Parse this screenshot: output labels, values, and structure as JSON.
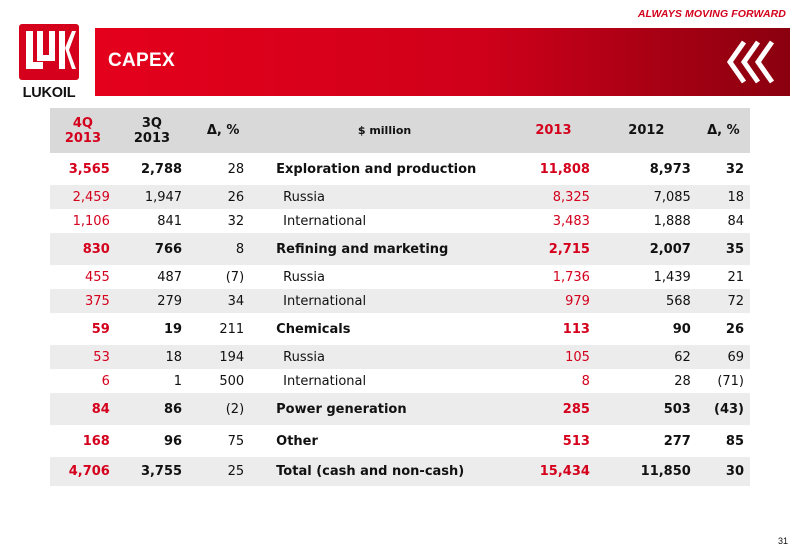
{
  "tagline": "ALWAYS MOVING FORWARD",
  "brand": {
    "name": "LUKOIL",
    "color": "#d4001c"
  },
  "title": "CAPEX",
  "table": {
    "headers": [
      "4Q\n2013",
      "3Q\n2013",
      "Δ, %",
      "$ million",
      "2013",
      "2012",
      "Δ, %"
    ],
    "rows": [
      {
        "c": [
          "3,565",
          "2,788",
          "28",
          "Exploration and production",
          "11,808",
          "8,973",
          "32"
        ]
      },
      {
        "c": [
          "2,459",
          "1,947",
          "26",
          "Russia",
          "8,325",
          "7,085",
          "18"
        ]
      },
      {
        "c": [
          "1,106",
          "841",
          "32",
          "International",
          "3,483",
          "1,888",
          "84"
        ]
      },
      {
        "c": [
          "830",
          "766",
          "8",
          "Refining and marketing",
          "2,715",
          "2,007",
          "35"
        ]
      },
      {
        "c": [
          "455",
          "487",
          "(7)",
          "Russia",
          "1,736",
          "1,439",
          "21"
        ]
      },
      {
        "c": [
          "375",
          "279",
          "34",
          "International",
          "979",
          "568",
          "72"
        ]
      },
      {
        "c": [
          "59",
          "19",
          "211",
          "Chemicals",
          "113",
          "90",
          "26"
        ]
      },
      {
        "c": [
          "53",
          "18",
          "194",
          "Russia",
          "105",
          "62",
          "69"
        ]
      },
      {
        "c": [
          "6",
          "1",
          "500",
          "International",
          "8",
          "28",
          "(71)"
        ]
      },
      {
        "c": [
          "84",
          "86",
          "(2)",
          "Power generation",
          "285",
          "503",
          "(43)"
        ]
      },
      {
        "c": [
          "168",
          "96",
          "75",
          "Other",
          "513",
          "277",
          "85"
        ]
      },
      {
        "c": [
          "4,706",
          "3,755",
          "25",
          "Total (cash and non-cash)",
          "15,434",
          "11,850",
          "30"
        ]
      }
    ]
  },
  "page_number": "31"
}
